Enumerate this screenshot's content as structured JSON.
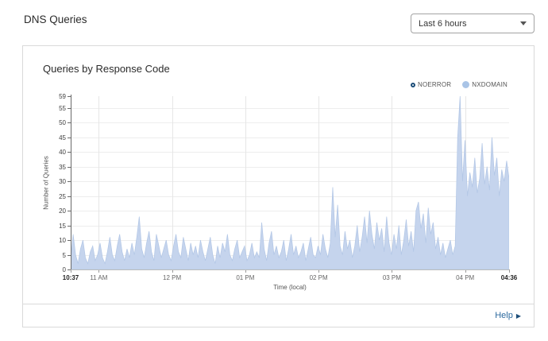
{
  "header": {
    "title": "DNS Queries",
    "time_range": {
      "value": "Last 6 hours"
    }
  },
  "chart_data": {
    "type": "area",
    "title": "Queries by Response Code",
    "xlabel": "Time (local)",
    "ylabel": "Number of Queries",
    "ylim": [
      0,
      59
    ],
    "grid": true,
    "legend_position": "top-right",
    "legend": [
      {
        "label": "NOERROR",
        "marker": "open-circle",
        "color": "#1d4e79",
        "visible_series": false
      },
      {
        "label": "NXDOMAIN",
        "marker": "filled-circle",
        "color": "#a9c4e6",
        "visible_series": true
      }
    ],
    "y_ticks": [
      0,
      5,
      10,
      15,
      20,
      25,
      30,
      35,
      40,
      45,
      50,
      55,
      59
    ],
    "x_ticks": [
      {
        "label": "10:37",
        "min": 0,
        "bold": true,
        "grid": false
      },
      {
        "label": "11 AM",
        "min": 23,
        "bold": false,
        "grid": true
      },
      {
        "label": "12 PM",
        "min": 83,
        "bold": false,
        "grid": true
      },
      {
        "label": "01 PM",
        "min": 143,
        "bold": false,
        "grid": true
      },
      {
        "label": "02 PM",
        "min": 203,
        "bold": false,
        "grid": true
      },
      {
        "label": "03 PM",
        "min": 263,
        "bold": false,
        "grid": true
      },
      {
        "label": "04 PM",
        "min": 323,
        "bold": false,
        "grid": true
      },
      {
        "label": "04:36",
        "min": 359,
        "bold": true,
        "grid": false
      }
    ],
    "x_start_label": "10:37",
    "x_end_label": "04:36",
    "sample_interval_minutes": 2,
    "series": [
      {
        "name": "NXDOMAIN",
        "fill": "#c5d4ed",
        "stroke": "#b3c7e6",
        "values": [
          3,
          12,
          5,
          2,
          7,
          10,
          4,
          2,
          6,
          8,
          3,
          5,
          9,
          4,
          2,
          6,
          11,
          5,
          3,
          8,
          12,
          6,
          3,
          7,
          4,
          9,
          5,
          11,
          18,
          7,
          4,
          9,
          13,
          6,
          3,
          12,
          8,
          4,
          7,
          10,
          5,
          3,
          8,
          12,
          6,
          4,
          11,
          7,
          3,
          9,
          5,
          8,
          4,
          10,
          6,
          3,
          7,
          11,
          5,
          2,
          8,
          4,
          9,
          6,
          12,
          5,
          3,
          7,
          10,
          4,
          6,
          8,
          3,
          5,
          9,
          4,
          6,
          4,
          16,
          7,
          3,
          9,
          13,
          5,
          8,
          4,
          6,
          10,
          3,
          7,
          12,
          5,
          8,
          4,
          6,
          9,
          3,
          7,
          11,
          5,
          4,
          8,
          5,
          12,
          7,
          4,
          9,
          28,
          11,
          22,
          8,
          5,
          13,
          7,
          10,
          4,
          8,
          15,
          6,
          11,
          18,
          9,
          20,
          12,
          7,
          16,
          10,
          14,
          6,
          18,
          9,
          5,
          12,
          7,
          15,
          5,
          10,
          17,
          8,
          13,
          6,
          20,
          23,
          14,
          19,
          9,
          21,
          12,
          16,
          7,
          11,
          5,
          9,
          4,
          7,
          10,
          5,
          8,
          45,
          59,
          30,
          44,
          25,
          33,
          28,
          38,
          26,
          31,
          43,
          29,
          35,
          27,
          45,
          32,
          38,
          25,
          34,
          30,
          37,
          31
        ]
      }
    ]
  },
  "footer": {
    "help_label": "Help",
    "help_arrow": "▶"
  },
  "colors": {
    "area_fill": "#c5d4ed",
    "accent_blue": "#2d6a9f",
    "legend_navy": "#1d4e79",
    "card_border": "#d9d9d9"
  }
}
